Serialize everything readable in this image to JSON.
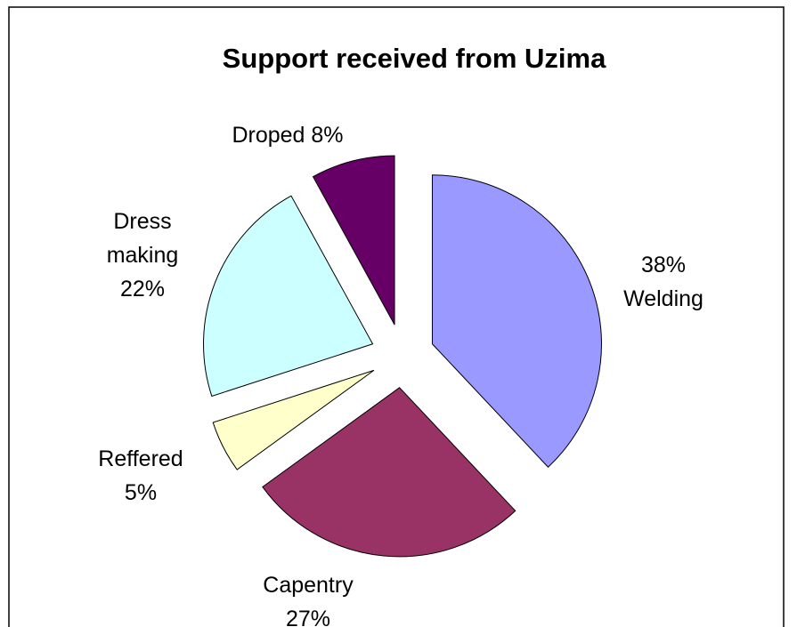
{
  "chart_data": {
    "type": "pie",
    "title": "Support received from Uzima",
    "categories": [
      "Welding",
      "Capentry",
      "Reffered",
      "Dress making",
      "Droped"
    ],
    "values": [
      38,
      27,
      5,
      22,
      8
    ],
    "value_labels": [
      "38%",
      "27%",
      "5%",
      "22%",
      "8%"
    ],
    "colors": [
      "#9999ff",
      "#993366",
      "#ffffcc",
      "#ccffff",
      "#660066"
    ]
  }
}
